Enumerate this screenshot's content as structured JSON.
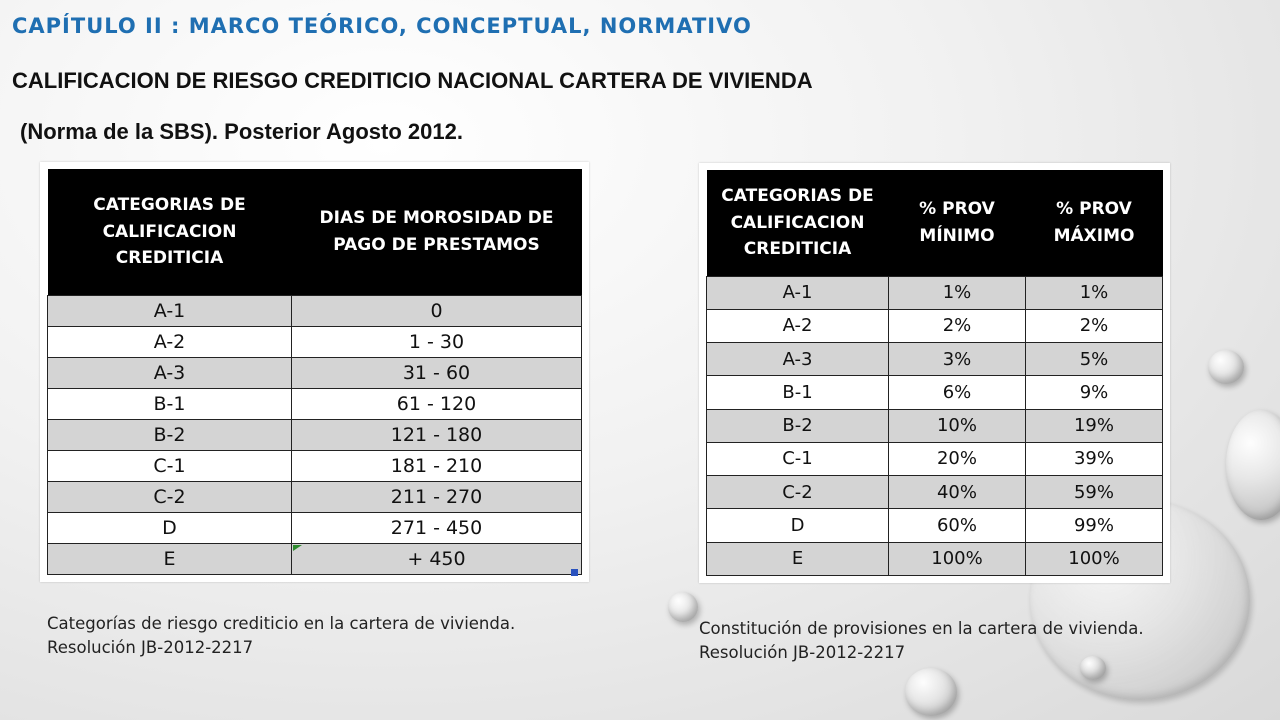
{
  "header": {
    "chapter_title": "CAPÍTULO II : MARCO TEÓRICO, CONCEPTUAL, NORMATIVO",
    "main_title": "CALIFICACION DE RIESGO CREDITICIO NACIONAL CARTERA DE VIVIENDA",
    "sub_title": "(Norma de la SBS). Posterior Agosto 2012."
  },
  "table_left": {
    "headers": [
      "CATEGORIAS DE CALIFICACION CREDITICIA",
      "DIAS DE MOROSIDAD DE PAGO DE PRESTAMOS"
    ],
    "rows": [
      [
        "A-1",
        "0"
      ],
      [
        "A-2",
        "1 - 30"
      ],
      [
        "A-3",
        "31 - 60"
      ],
      [
        "B-1",
        "61 - 120"
      ],
      [
        "B-2",
        "121 - 180"
      ],
      [
        "C-1",
        "181 - 210"
      ],
      [
        "C-2",
        "211 - 270"
      ],
      [
        "D",
        "271 - 450"
      ],
      [
        "E",
        "+ 450"
      ]
    ],
    "caption": "Categorías de riesgo crediticio en la cartera de vivienda. Resolución JB-2012-2217"
  },
  "table_right": {
    "headers": [
      "CATEGORIAS DE CALIFICACION CREDITICIA",
      "% PROV MÍNIMO",
      "% PROV MÁXIMO"
    ],
    "rows": [
      [
        "A-1",
        "1%",
        "1%"
      ],
      [
        "A-2",
        "2%",
        "2%"
      ],
      [
        "A-3",
        "3%",
        "5%"
      ],
      [
        "B-1",
        "6%",
        "9%"
      ],
      [
        "B-2",
        "10%",
        "19%"
      ],
      [
        "C-1",
        "20%",
        "39%"
      ],
      [
        "C-2",
        "40%",
        "59%"
      ],
      [
        "D",
        "60%",
        "99%"
      ],
      [
        "E",
        "100%",
        "100%"
      ]
    ],
    "caption": "Constitución de provisiones en la cartera de vivienda. Resolución JB-2012-2217"
  },
  "colors": {
    "chapter_title": "#1f6fb2",
    "header_bg": "#000000",
    "row_shade": "#d4d4d4"
  }
}
